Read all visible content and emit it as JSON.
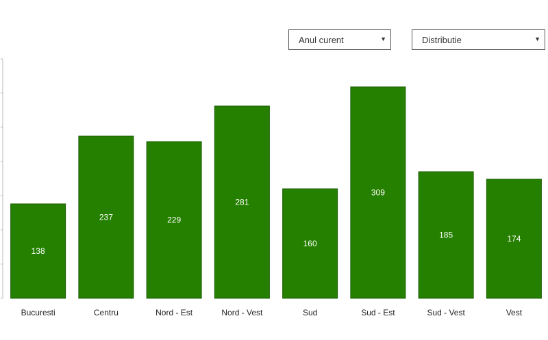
{
  "controls": {
    "period_select": {
      "value": "Anul curent"
    },
    "mode_select": {
      "value": "Distributie"
    }
  },
  "icons": {
    "dropdown": "caret-down-icon"
  },
  "colors": {
    "bar": "#258000",
    "bar_border": "#1a5c00",
    "axis": "#bbbbbb"
  },
  "chart_data": {
    "type": "bar",
    "categories": [
      "Bucuresti",
      "Centru",
      "Nord - Est",
      "Nord - Vest",
      "Sud",
      "Sud - Est",
      "Sud - Vest",
      "Vest"
    ],
    "values": [
      138,
      237,
      229,
      281,
      160,
      309,
      185,
      174
    ],
    "title": "",
    "xlabel": "",
    "ylabel": "",
    "ylim": [
      0,
      350
    ],
    "grid": false,
    "data_labels": true
  }
}
